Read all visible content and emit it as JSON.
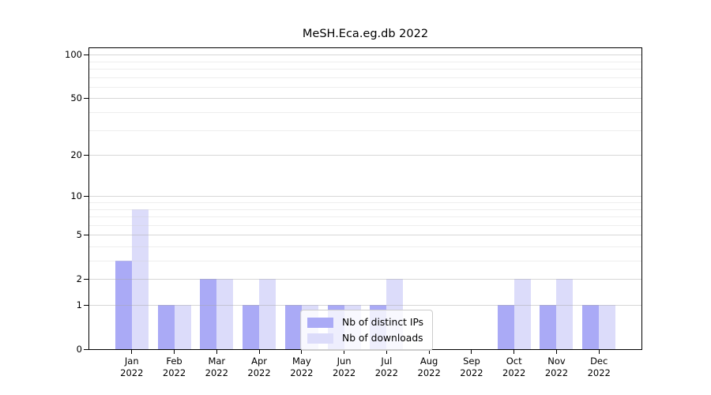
{
  "chart_data": {
    "type": "bar",
    "title": "MeSH.Eca.eg.db 2022",
    "x_year": "2022",
    "categories": [
      "Jan",
      "Feb",
      "Mar",
      "Apr",
      "May",
      "Jun",
      "Jul",
      "Aug",
      "Sep",
      "Oct",
      "Nov",
      "Dec"
    ],
    "series": [
      {
        "key": "distinct-ips",
        "name": "Nb of distinct IPs",
        "color": "#aaaaf6",
        "values": [
          3,
          1,
          2,
          1,
          1,
          1,
          1,
          0,
          0,
          1,
          1,
          1
        ]
      },
      {
        "key": "downloads",
        "name": "Nb of downloads",
        "color": "#dcdcfa",
        "values": [
          8,
          1,
          2,
          2,
          1,
          1,
          2,
          0,
          0,
          2,
          2,
          1
        ]
      }
    ],
    "yscale": "log10(value+1)",
    "ylim": [
      0,
      114
    ],
    "yticks": [
      100,
      50,
      20,
      10,
      5,
      2,
      1,
      0
    ],
    "minor_yticks": [
      3,
      4,
      6,
      7,
      8,
      9,
      30,
      40,
      60,
      70,
      80,
      90
    ],
    "grid": "horizontal",
    "legend_position": "bottom-center"
  },
  "colors": {
    "background": "#ffffff",
    "axis": "#000000",
    "grid_major": "rgba(166,166,166,0.45)",
    "grid_minor": "rgba(205,205,205,0.35)",
    "legend_border": "#cccccc",
    "text": "#000000"
  }
}
